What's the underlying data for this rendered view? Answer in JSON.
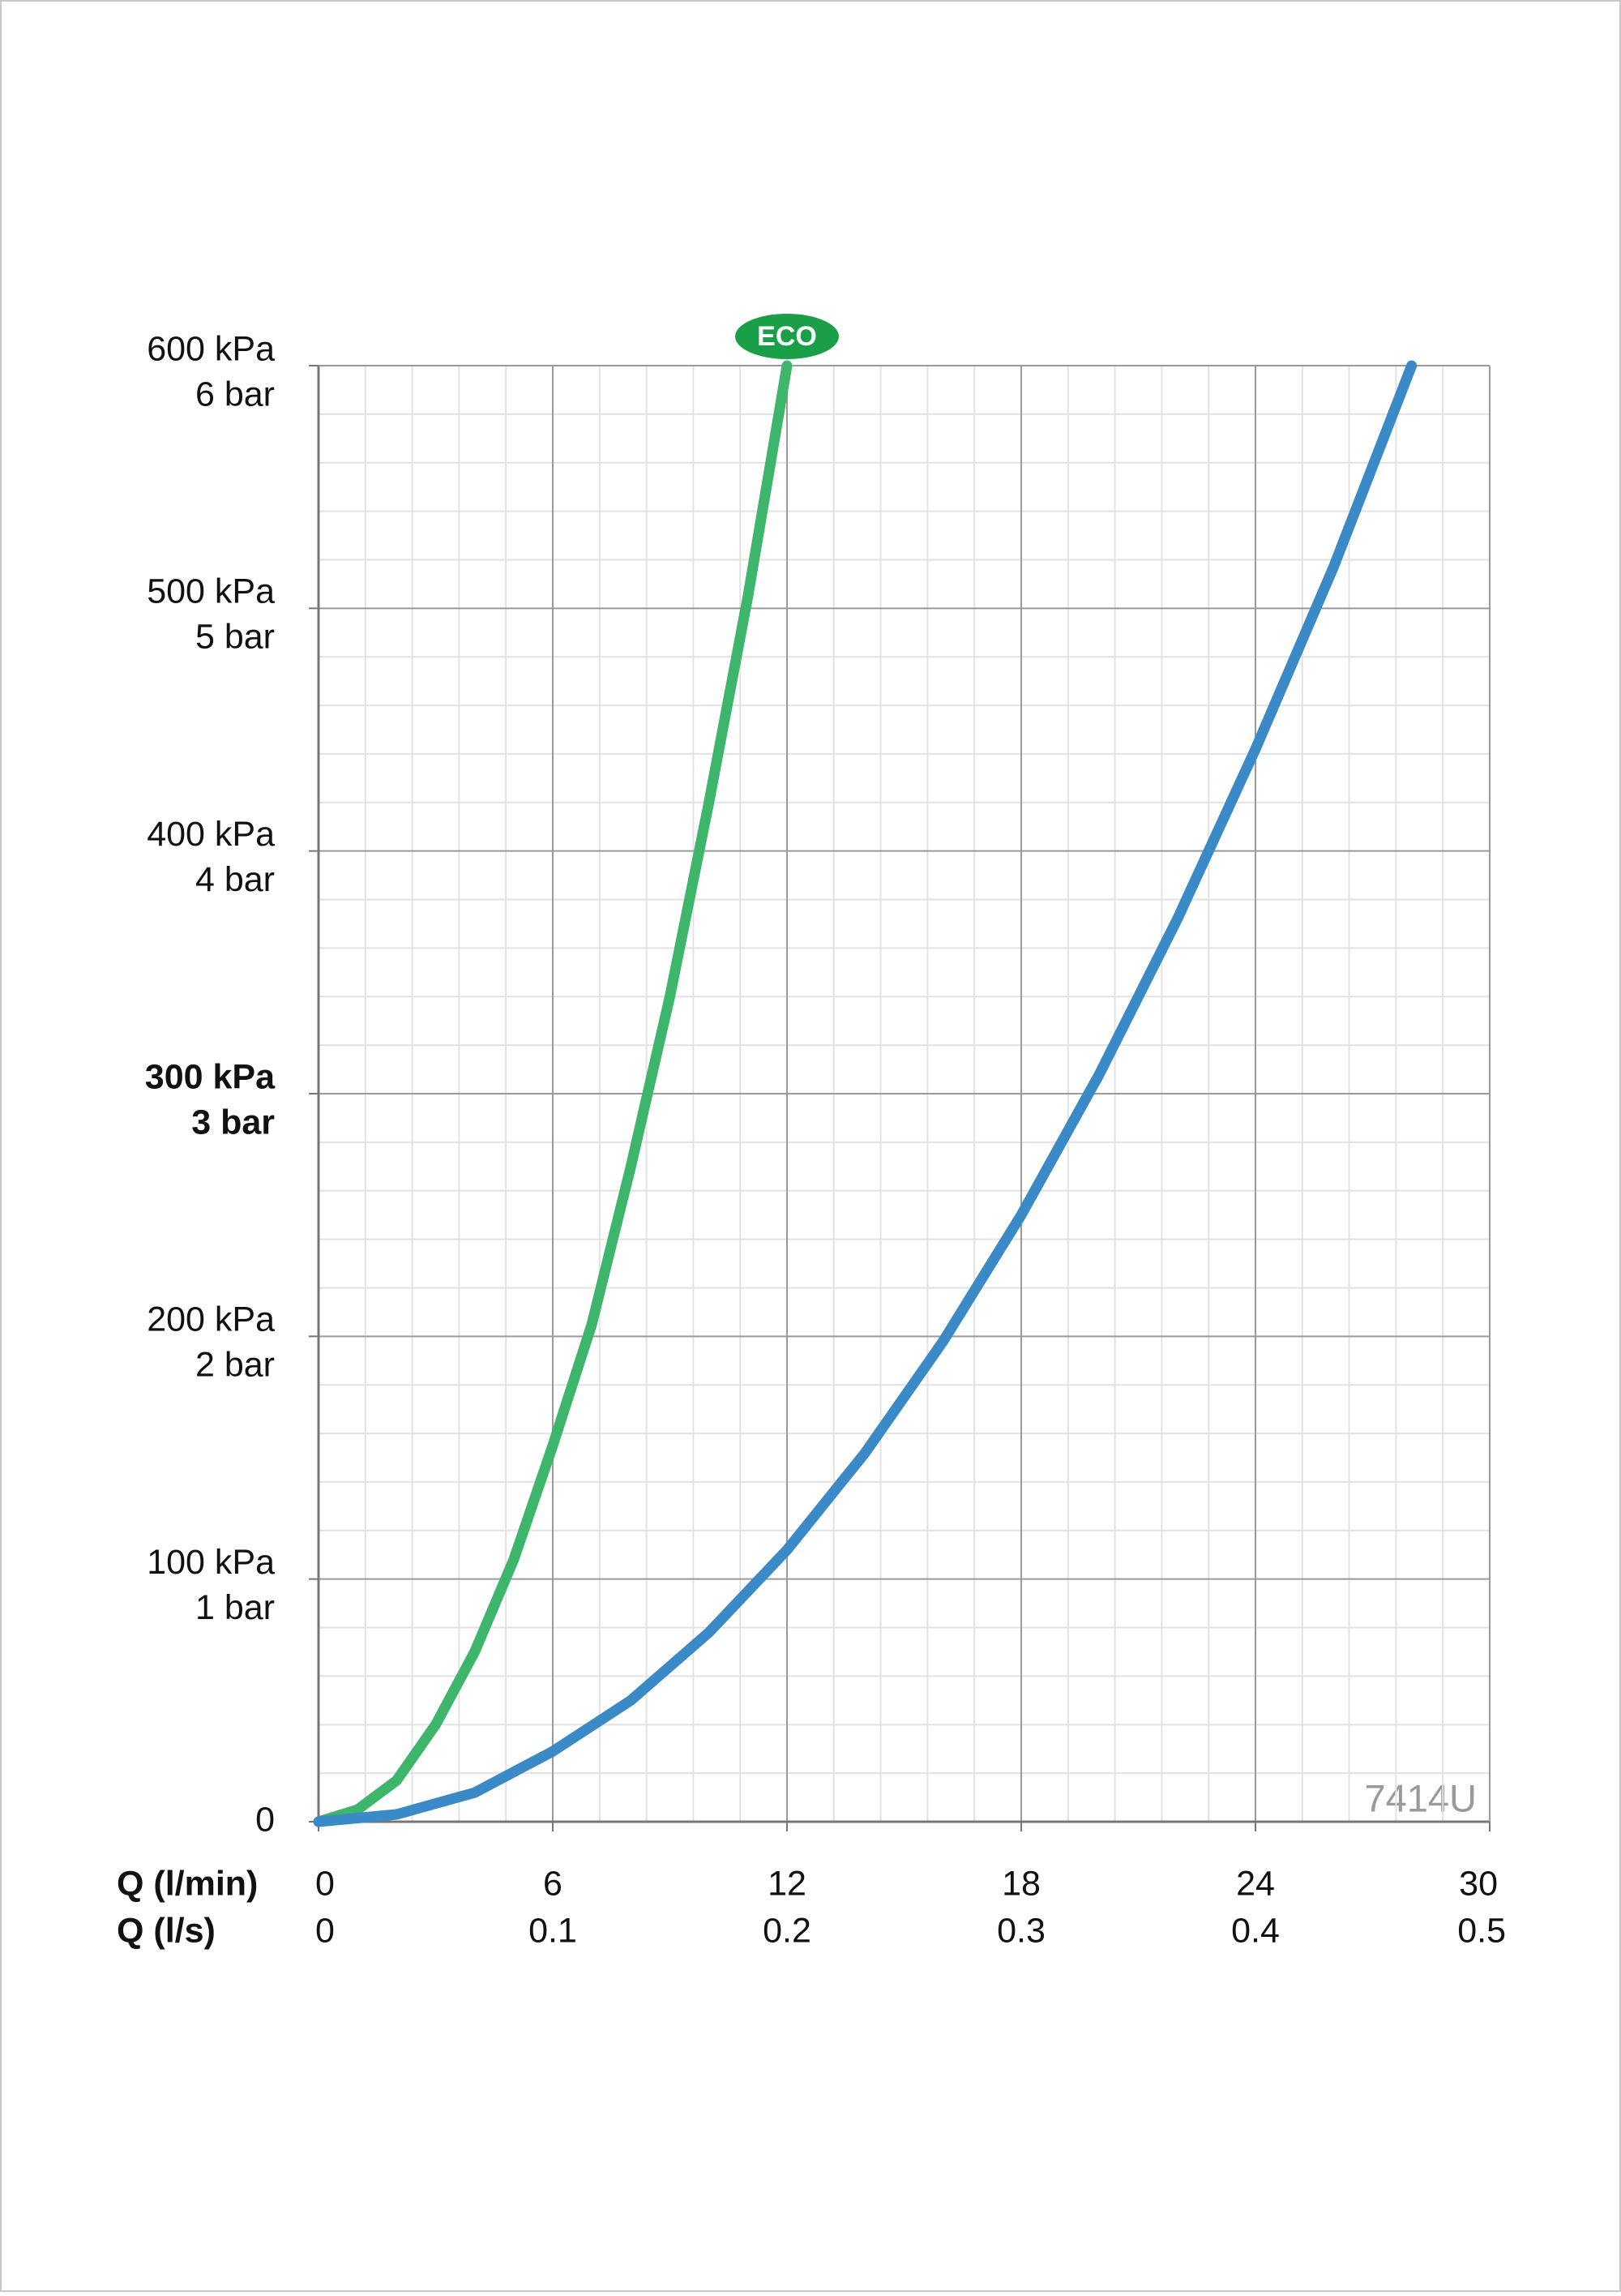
{
  "chart_data": {
    "type": "line",
    "badge": "ECO",
    "watermark": "7414U",
    "xlabel": "Q (l/min)",
    "x2label": "Q (l/s)",
    "xlim": [
      0,
      30
    ],
    "xticks": [
      0,
      6,
      12,
      18,
      24,
      30
    ],
    "x2lim": [
      0,
      0.5
    ],
    "x2ticks": [
      0,
      0.1,
      0.2,
      0.3,
      0.4,
      0.5
    ],
    "ylim": [
      0,
      600
    ],
    "yticks": [
      0,
      {
        "value": 100,
        "label": "100 kPa"
      },
      {
        "value": 200,
        "label": "200 kPa"
      },
      {
        "value": 300,
        "label": "300 kPa"
      },
      {
        "value": 400,
        "label": "400 kPa"
      },
      {
        "value": 500,
        "label": "500 kPa"
      },
      {
        "value": 600,
        "label": "600 kPa"
      }
    ],
    "y2lim": [
      0,
      6
    ],
    "y2ticks": [
      {
        "value": 1,
        "label": "1 bar"
      },
      {
        "value": 2,
        "label": "2 bar"
      },
      {
        "value": 3,
        "label": "3 bar"
      },
      {
        "value": 4,
        "label": "4 bar"
      },
      {
        "value": 5,
        "label": "5 bar"
      },
      {
        "value": 6,
        "label": "6 bar"
      }
    ],
    "highlight_y": 300,
    "grid": true,
    "series": [
      {
        "name": "ECO",
        "color": "#3db56a",
        "x": [
          0,
          1,
          2,
          3,
          4,
          5,
          6,
          7,
          8,
          9,
          10,
          11,
          12
        ],
        "values": [
          0,
          5,
          17,
          40,
          70,
          108,
          155,
          205,
          270,
          340,
          420,
          505,
          600
        ]
      },
      {
        "color": "#3a8ac8",
        "x": [
          0,
          2,
          4,
          6,
          8,
          10,
          12,
          14,
          16,
          18,
          20,
          22,
          24,
          26,
          28
        ],
        "values": [
          0,
          3,
          12,
          29,
          50,
          78,
          112,
          152,
          198,
          250,
          308,
          372,
          442,
          517,
          600
        ]
      }
    ]
  }
}
